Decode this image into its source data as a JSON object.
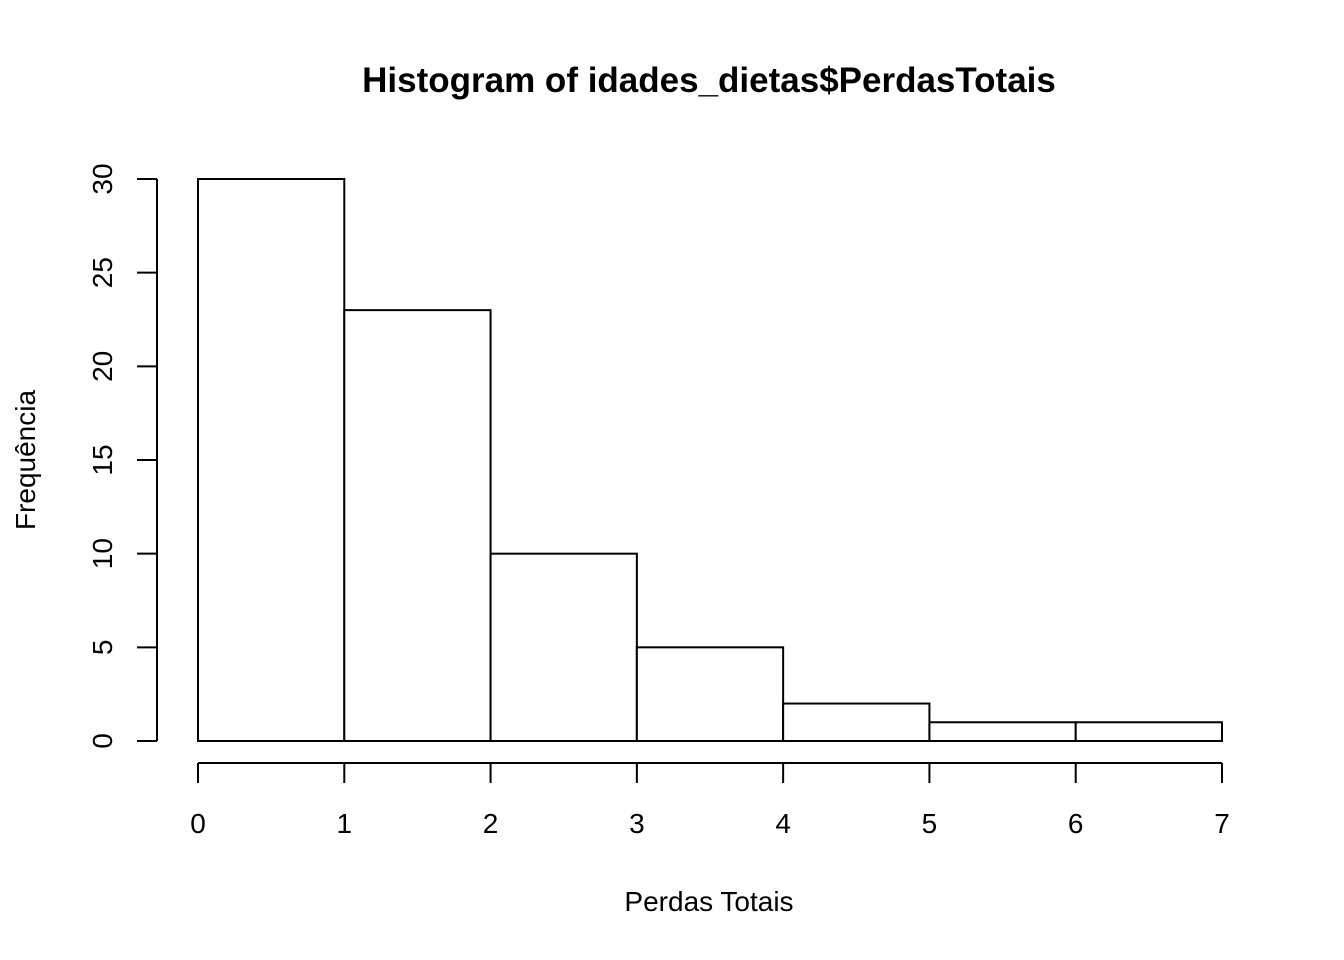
{
  "chart_data": {
    "type": "bar",
    "title": "Histogram of idades_dietas$PerdasTotais",
    "xlabel": "Perdas Totais",
    "ylabel": "Frequência",
    "bins": [
      {
        "from": 0,
        "to": 1,
        "count": 30
      },
      {
        "from": 1,
        "to": 2,
        "count": 23
      },
      {
        "from": 2,
        "to": 3,
        "count": 10
      },
      {
        "from": 3,
        "to": 4,
        "count": 5
      },
      {
        "from": 4,
        "to": 5,
        "count": 2
      },
      {
        "from": 5,
        "to": 6,
        "count": 1
      },
      {
        "from": 6,
        "to": 7,
        "count": 1
      }
    ],
    "xlim": [
      0,
      7
    ],
    "ylim": [
      0,
      30
    ],
    "xticks": [
      "0",
      "1",
      "2",
      "3",
      "4",
      "5",
      "6",
      "7"
    ],
    "yticks": [
      "0",
      "5",
      "10",
      "15",
      "20",
      "25",
      "30"
    ],
    "grid": false,
    "legend": "none",
    "bar_fill": "#ffffff",
    "bar_stroke": "#000000"
  }
}
